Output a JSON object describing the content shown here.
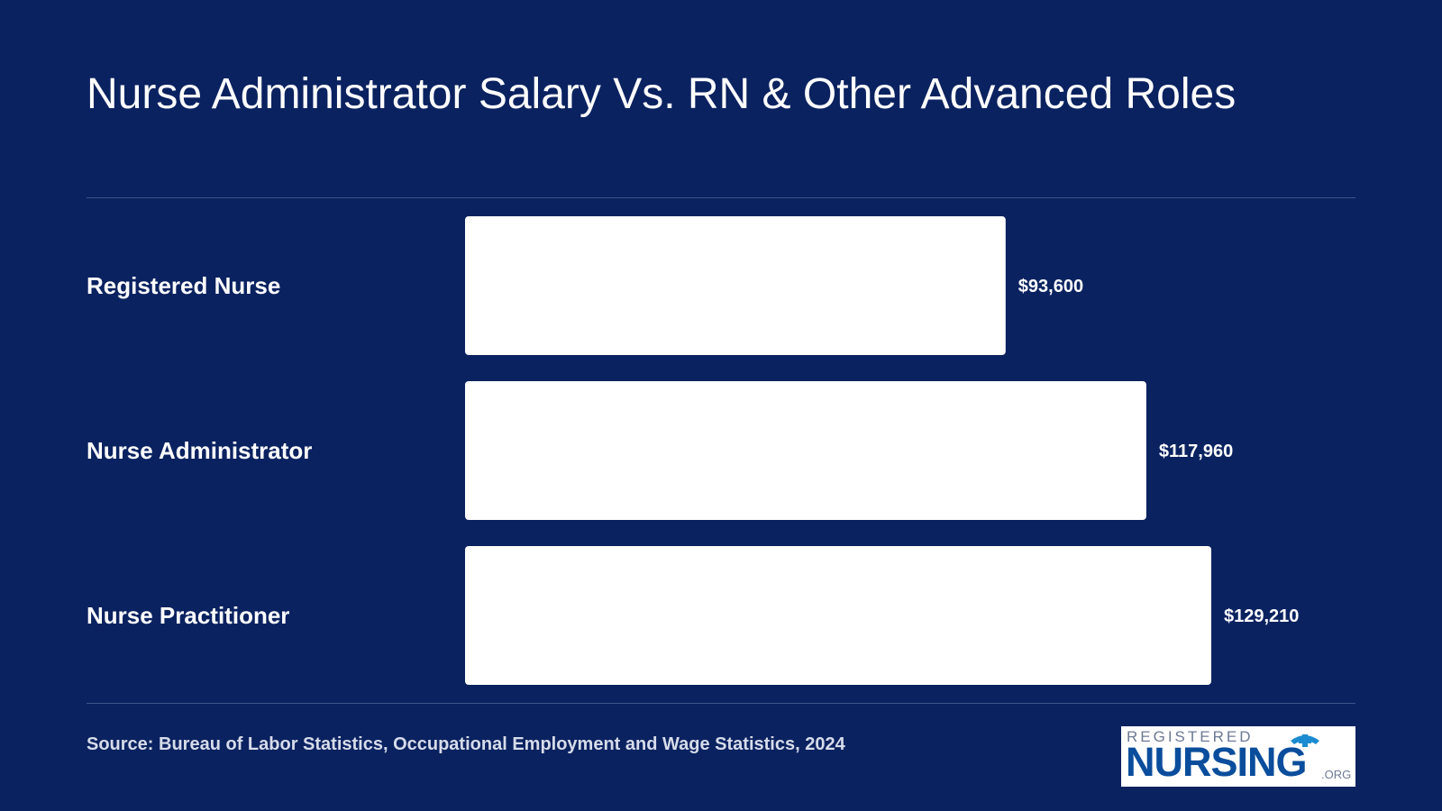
{
  "chart_data": {
    "type": "bar",
    "orientation": "horizontal",
    "title": "Nurse Administrator Salary Vs. RN & Other Advanced Roles",
    "categories": [
      "Registered Nurse",
      "Nurse Administrator",
      "Nurse Practitioner"
    ],
    "values": [
      93600,
      117960,
      129210
    ],
    "value_labels": [
      "$93,600",
      "$117,960",
      "$129,210"
    ],
    "xlim": [
      0,
      129210
    ],
    "grid": false,
    "colors": {
      "background": "#0b2260",
      "bar": "#ffffff",
      "text": "#ffffff"
    }
  },
  "source": "Source: Bureau of Labor Statistics, Occupational Employment and Wage Statistics, 2024",
  "logo": {
    "top_text": "REGISTERED",
    "main_text": "NURSING",
    "suffix": ".ORG",
    "icon": "nurse-cap-cross-icon"
  }
}
